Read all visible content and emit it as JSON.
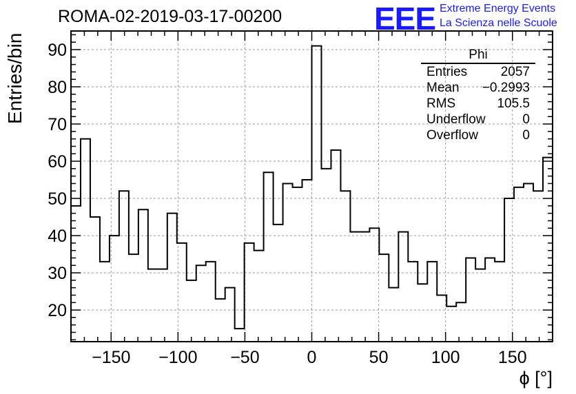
{
  "chart_data": {
    "type": "bar",
    "title": "ROMA-02-2019-03-17-00200",
    "xlabel": "ϕ [°]",
    "ylabel": "Entries/bin",
    "xlim": [
      -180,
      180
    ],
    "ylim": [
      11.5,
      95
    ],
    "bin_edges_start": -180,
    "bin_width": 7.2,
    "values": [
      48,
      66,
      45,
      33,
      40,
      52,
      35,
      47,
      31,
      31,
      46,
      38,
      28,
      32,
      33,
      23,
      26,
      15,
      38,
      36,
      57,
      43,
      54,
      53,
      55,
      91,
      58,
      63,
      52,
      41,
      41,
      42,
      35,
      26,
      41,
      33,
      27,
      33,
      24,
      21,
      22,
      34,
      31,
      34,
      33,
      50,
      53,
      54,
      52,
      61
    ],
    "x_ticks": [
      -150,
      -100,
      -50,
      0,
      50,
      100,
      150
    ],
    "x_tick_labels": [
      "−150",
      "−100",
      "−50",
      "0",
      "50",
      "100",
      "150"
    ],
    "y_ticks": [
      20,
      30,
      40,
      50,
      60,
      70,
      80,
      90
    ],
    "y_tick_labels": [
      "20",
      "30",
      "40",
      "50",
      "60",
      "70",
      "80",
      "90"
    ],
    "grid": true,
    "legend": "top-right"
  },
  "stats": {
    "title": "Phi",
    "rows": [
      {
        "label": "Entries",
        "value": "2057"
      },
      {
        "label": "Mean",
        "value": "−0.2993"
      },
      {
        "label": "RMS",
        "value": "105.5"
      },
      {
        "label": "Underflow",
        "value": "0"
      },
      {
        "label": "Overflow",
        "value": "0"
      }
    ]
  },
  "logo": {
    "mark": "EEE",
    "line1": "Extreme Energy Events",
    "line2": "La Scienza nelle Scuole"
  },
  "colors": {
    "line": "#000000",
    "grid": "#9a9a9a",
    "logo": "#1a1aff"
  }
}
